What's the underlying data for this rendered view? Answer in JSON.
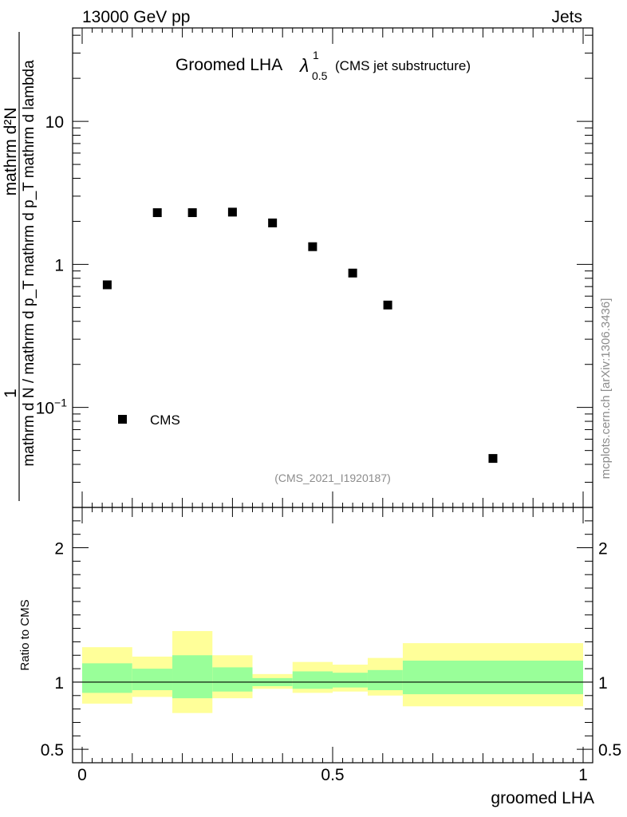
{
  "header": {
    "left": "13000 GeV pp",
    "right": "Jets"
  },
  "title": {
    "main": "Groomed LHA",
    "lambda": "λ",
    "sup": "1",
    "sub": "0.5",
    "suffix": "(CMS jet substructure)"
  },
  "analysis_id": "(CMS_2021_I1920187)",
  "side_label": "mcplots.cern.ch [arXiv:1306.3436]",
  "ylabel_top": {
    "numerator": "mathrm d²N",
    "denominator": "mathrm d N / mathrm d p_T mathrm d p_T mathrm d lambda",
    "prefix": "1"
  },
  "ylabel_ratio": "Ratio to CMS",
  "xlabel": "groomed LHA",
  "legend": {
    "label": "CMS"
  },
  "colors": {
    "band_outer": "#ffff99",
    "band_inner": "#99ff99",
    "marker": "#000000"
  },
  "chart_data": [
    {
      "type": "scatter",
      "name": "main",
      "yscale": "log",
      "xlim": [
        0,
        1
      ],
      "ylim": [
        0.02,
        45
      ],
      "yticks": [
        {
          "v": 0.1,
          "base": "10",
          "exp": "−1"
        },
        {
          "v": 1,
          "label": "1"
        },
        {
          "v": 10,
          "label": "10"
        }
      ],
      "series": [
        {
          "name": "CMS",
          "x": [
            0.05,
            0.15,
            0.22,
            0.3,
            0.38,
            0.46,
            0.54,
            0.61,
            0.82
          ],
          "y": [
            0.72,
            2.3,
            2.3,
            2.32,
            1.95,
            1.33,
            0.87,
            0.52,
            0.044
          ]
        }
      ]
    },
    {
      "type": "area",
      "name": "ratio",
      "xlim": [
        0,
        1
      ],
      "ylim": [
        0.4,
        2.3
      ],
      "xticks": [
        {
          "v": 0,
          "label": "0"
        },
        {
          "v": 0.5,
          "label": "0.5"
        },
        {
          "v": 1,
          "label": "1"
        }
      ],
      "yticks": [
        {
          "v": 0.5,
          "label": "0.5"
        },
        {
          "v": 1,
          "label": "1"
        },
        {
          "v": 2,
          "label": "2"
        }
      ],
      "bins": [
        {
          "x0": 0.0,
          "x1": 0.1,
          "outer": [
            0.84,
            1.26
          ],
          "inner": [
            0.92,
            1.14
          ]
        },
        {
          "x0": 0.1,
          "x1": 0.18,
          "outer": [
            0.89,
            1.19
          ],
          "inner": [
            0.94,
            1.1
          ]
        },
        {
          "x0": 0.18,
          "x1": 0.26,
          "outer": [
            0.77,
            1.38
          ],
          "inner": [
            0.88,
            1.2
          ]
        },
        {
          "x0": 0.26,
          "x1": 0.34,
          "outer": [
            0.88,
            1.2
          ],
          "inner": [
            0.93,
            1.11
          ]
        },
        {
          "x0": 0.34,
          "x1": 0.42,
          "outer": [
            0.95,
            1.06
          ],
          "inner": [
            0.97,
            1.03
          ]
        },
        {
          "x0": 0.42,
          "x1": 0.5,
          "outer": [
            0.92,
            1.15
          ],
          "inner": [
            0.95,
            1.08
          ]
        },
        {
          "x0": 0.5,
          "x1": 0.57,
          "outer": [
            0.93,
            1.13
          ],
          "inner": [
            0.96,
            1.07
          ]
        },
        {
          "x0": 0.57,
          "x1": 0.64,
          "outer": [
            0.9,
            1.18
          ],
          "inner": [
            0.94,
            1.09
          ]
        },
        {
          "x0": 0.64,
          "x1": 1.0,
          "outer": [
            0.82,
            1.29
          ],
          "inner": [
            0.91,
            1.16
          ]
        }
      ],
      "reference": 1
    }
  ]
}
